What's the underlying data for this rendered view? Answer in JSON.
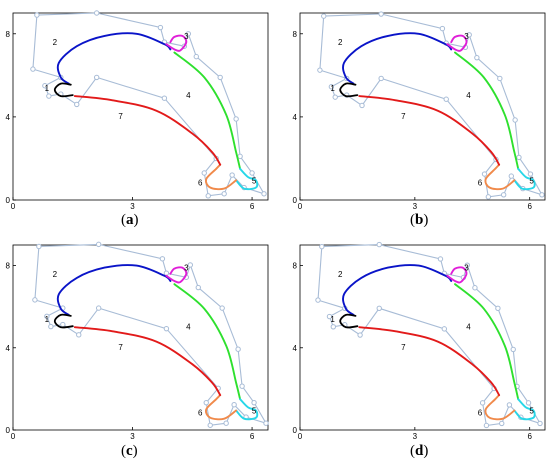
{
  "colors": {
    "frame": "#000000",
    "control_polygon": "#a8bcd6",
    "control_point": "#a8bcd6",
    "seg1": "#000000",
    "seg2": "#0a14c8",
    "seg3": "#e01ed8",
    "seg4": "#2ee02e",
    "seg5": "#27d7e8",
    "seg6": "#f08a4b",
    "seg7": "#e21a1a"
  },
  "axes": {
    "x_ticks": [
      "0",
      "3",
      "6"
    ],
    "y_ticks": [
      "0",
      "4",
      "8"
    ]
  },
  "segment_labels": [
    "1",
    "2",
    "3",
    "4",
    "5",
    "6",
    "7"
  ],
  "panels": [
    {
      "paren_open": "(",
      "letter": "a",
      "paren_close": ")"
    },
    {
      "paren_open": "(",
      "letter": "b",
      "paren_close": ")"
    },
    {
      "paren_open": "(",
      "letter": "c",
      "paren_close": ")"
    },
    {
      "paren_open": "(",
      "letter": "d",
      "paren_close": ")"
    }
  ]
}
